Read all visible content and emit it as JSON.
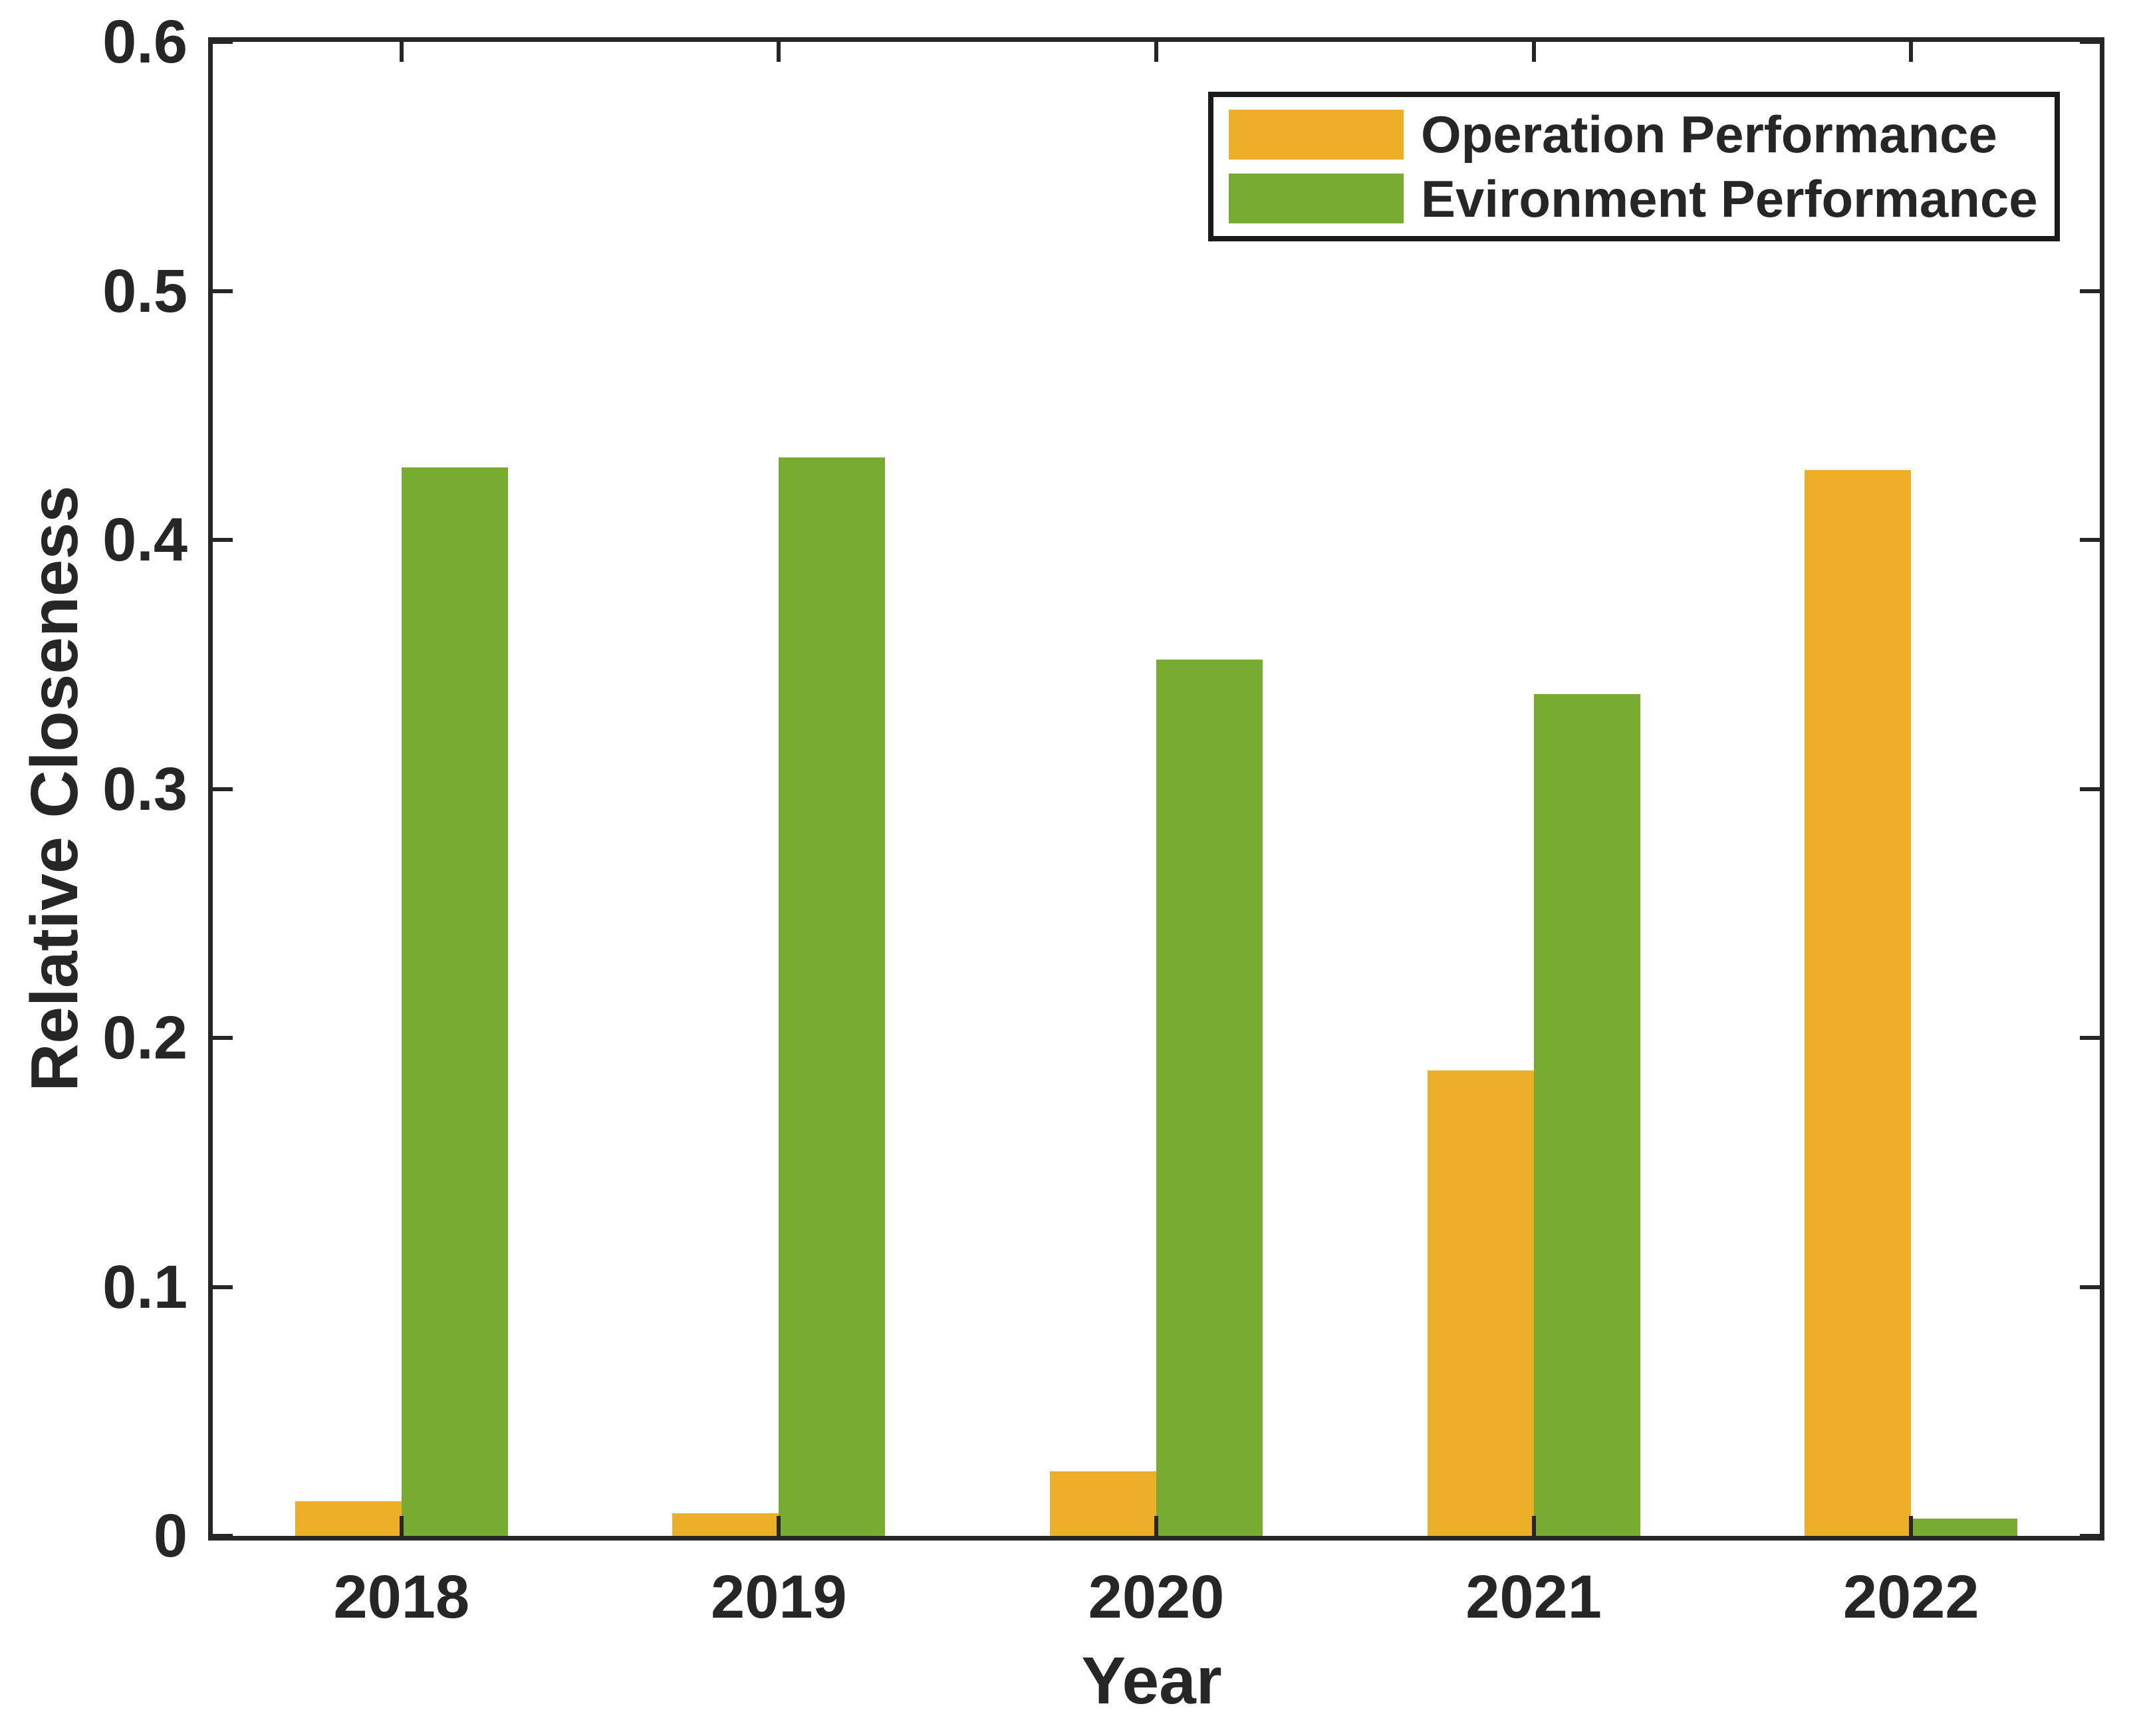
{
  "chart_data": {
    "type": "bar",
    "bar_mode": "grouped",
    "title": "",
    "xlabel": "Year",
    "ylabel": "Relative Closeness",
    "categories": [
      "2018",
      "2019",
      "2020",
      "2021",
      "2022"
    ],
    "series": [
      {
        "name": "Operation Performance",
        "color": "#ECAF27",
        "values": [
          0.014,
          0.009,
          0.026,
          0.187,
          0.428
        ]
      },
      {
        "name": "Evironment Performance",
        "color": "#77AC30",
        "values": [
          0.429,
          0.433,
          0.352,
          0.338,
          0.007
        ]
      }
    ],
    "ylim": [
      0,
      0.6
    ],
    "yticks": [
      0,
      0.1,
      0.2,
      0.3,
      0.4,
      0.5,
      0.6
    ],
    "ytick_labels": [
      "0",
      "0.1",
      "0.2",
      "0.3",
      "0.4",
      "0.5",
      "0.6"
    ],
    "grid": false,
    "legend_position": "top-right"
  },
  "figure": {
    "background": "#FFFFFF",
    "frame_color": "#262626",
    "text_color": "#262626",
    "legend_border_color": "#1A1A1A"
  }
}
